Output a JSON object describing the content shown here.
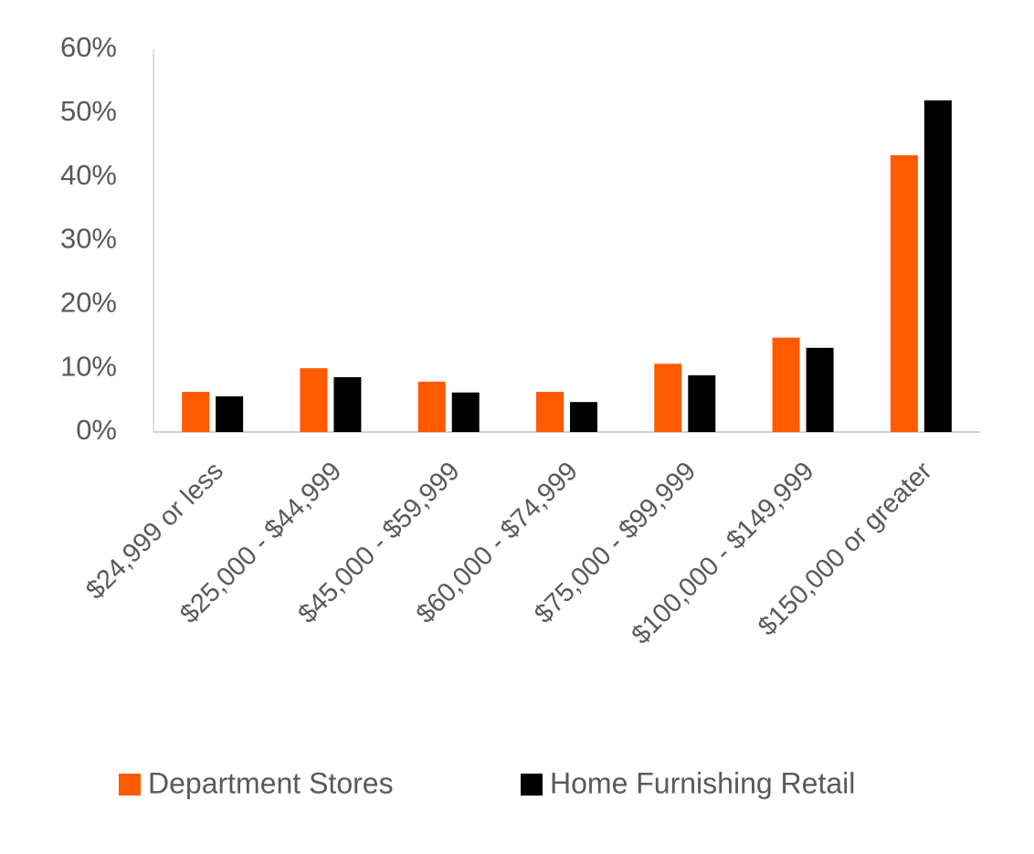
{
  "chart_data": {
    "type": "bar",
    "categories": [
      "$24,999 or less",
      "$25,000 - $44,999",
      "$45,000 - $59,999",
      "$60,000 - $74,999",
      "$75,000 - $99,999",
      "$100,000 - $149,999",
      "$150,000 or greater"
    ],
    "series": [
      {
        "name": "Department Stores",
        "color": "#ff5a00",
        "values": [
          6.3,
          10.0,
          7.9,
          6.3,
          10.7,
          14.8,
          43.4
        ]
      },
      {
        "name": "Home Furnishing Retail",
        "color": "#000000",
        "values": [
          5.6,
          8.6,
          6.2,
          4.7,
          8.9,
          13.2,
          52.0
        ]
      }
    ],
    "ylim": [
      0,
      60
    ],
    "yticks": [
      {
        "value": 0,
        "label": "0%"
      },
      {
        "value": 10,
        "label": "10%"
      },
      {
        "value": 20,
        "label": "20%"
      },
      {
        "value": 30,
        "label": "30%"
      },
      {
        "value": 40,
        "label": "40%"
      },
      {
        "value": 50,
        "label": "50%"
      },
      {
        "value": 60,
        "label": "60%"
      }
    ],
    "grid": false,
    "legend": "bottom"
  }
}
